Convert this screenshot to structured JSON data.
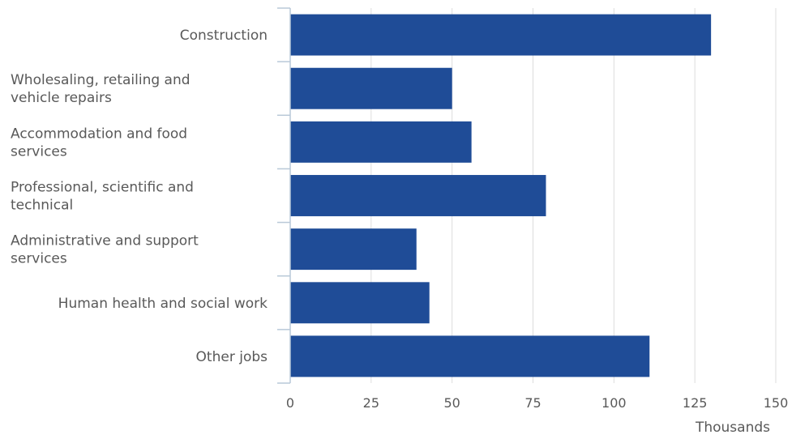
{
  "chart_data": {
    "type": "bar",
    "orientation": "horizontal",
    "categories": [
      "Construction",
      "Wholesaling, retailing and vehicle repairs",
      "Accommodation and food services",
      "Professional, scientific and technical",
      "Administrative and support services",
      "Human health and social work",
      "Other jobs"
    ],
    "category_lines": [
      [
        "Construction"
      ],
      [
        "Wholesaling, retailing and",
        "vehicle repairs"
      ],
      [
        "Accommodation and food",
        "services"
      ],
      [
        "Professional, scientific and",
        "technical"
      ],
      [
        "Administrative and support",
        "services"
      ],
      [
        "Human health and social work"
      ],
      [
        "Other jobs"
      ]
    ],
    "values": [
      130,
      50,
      56,
      79,
      39,
      43,
      111
    ],
    "xlim": [
      0,
      150
    ],
    "xticks": [
      "0",
      "25",
      "50",
      "75",
      "100",
      "125",
      "150"
    ],
    "xlabel": "Thousands",
    "grid": true,
    "bar_color": "#1f4c97",
    "grid_color": "#dcdcdc",
    "axis_color": "#b9c8d8",
    "text_color": "#595959"
  }
}
